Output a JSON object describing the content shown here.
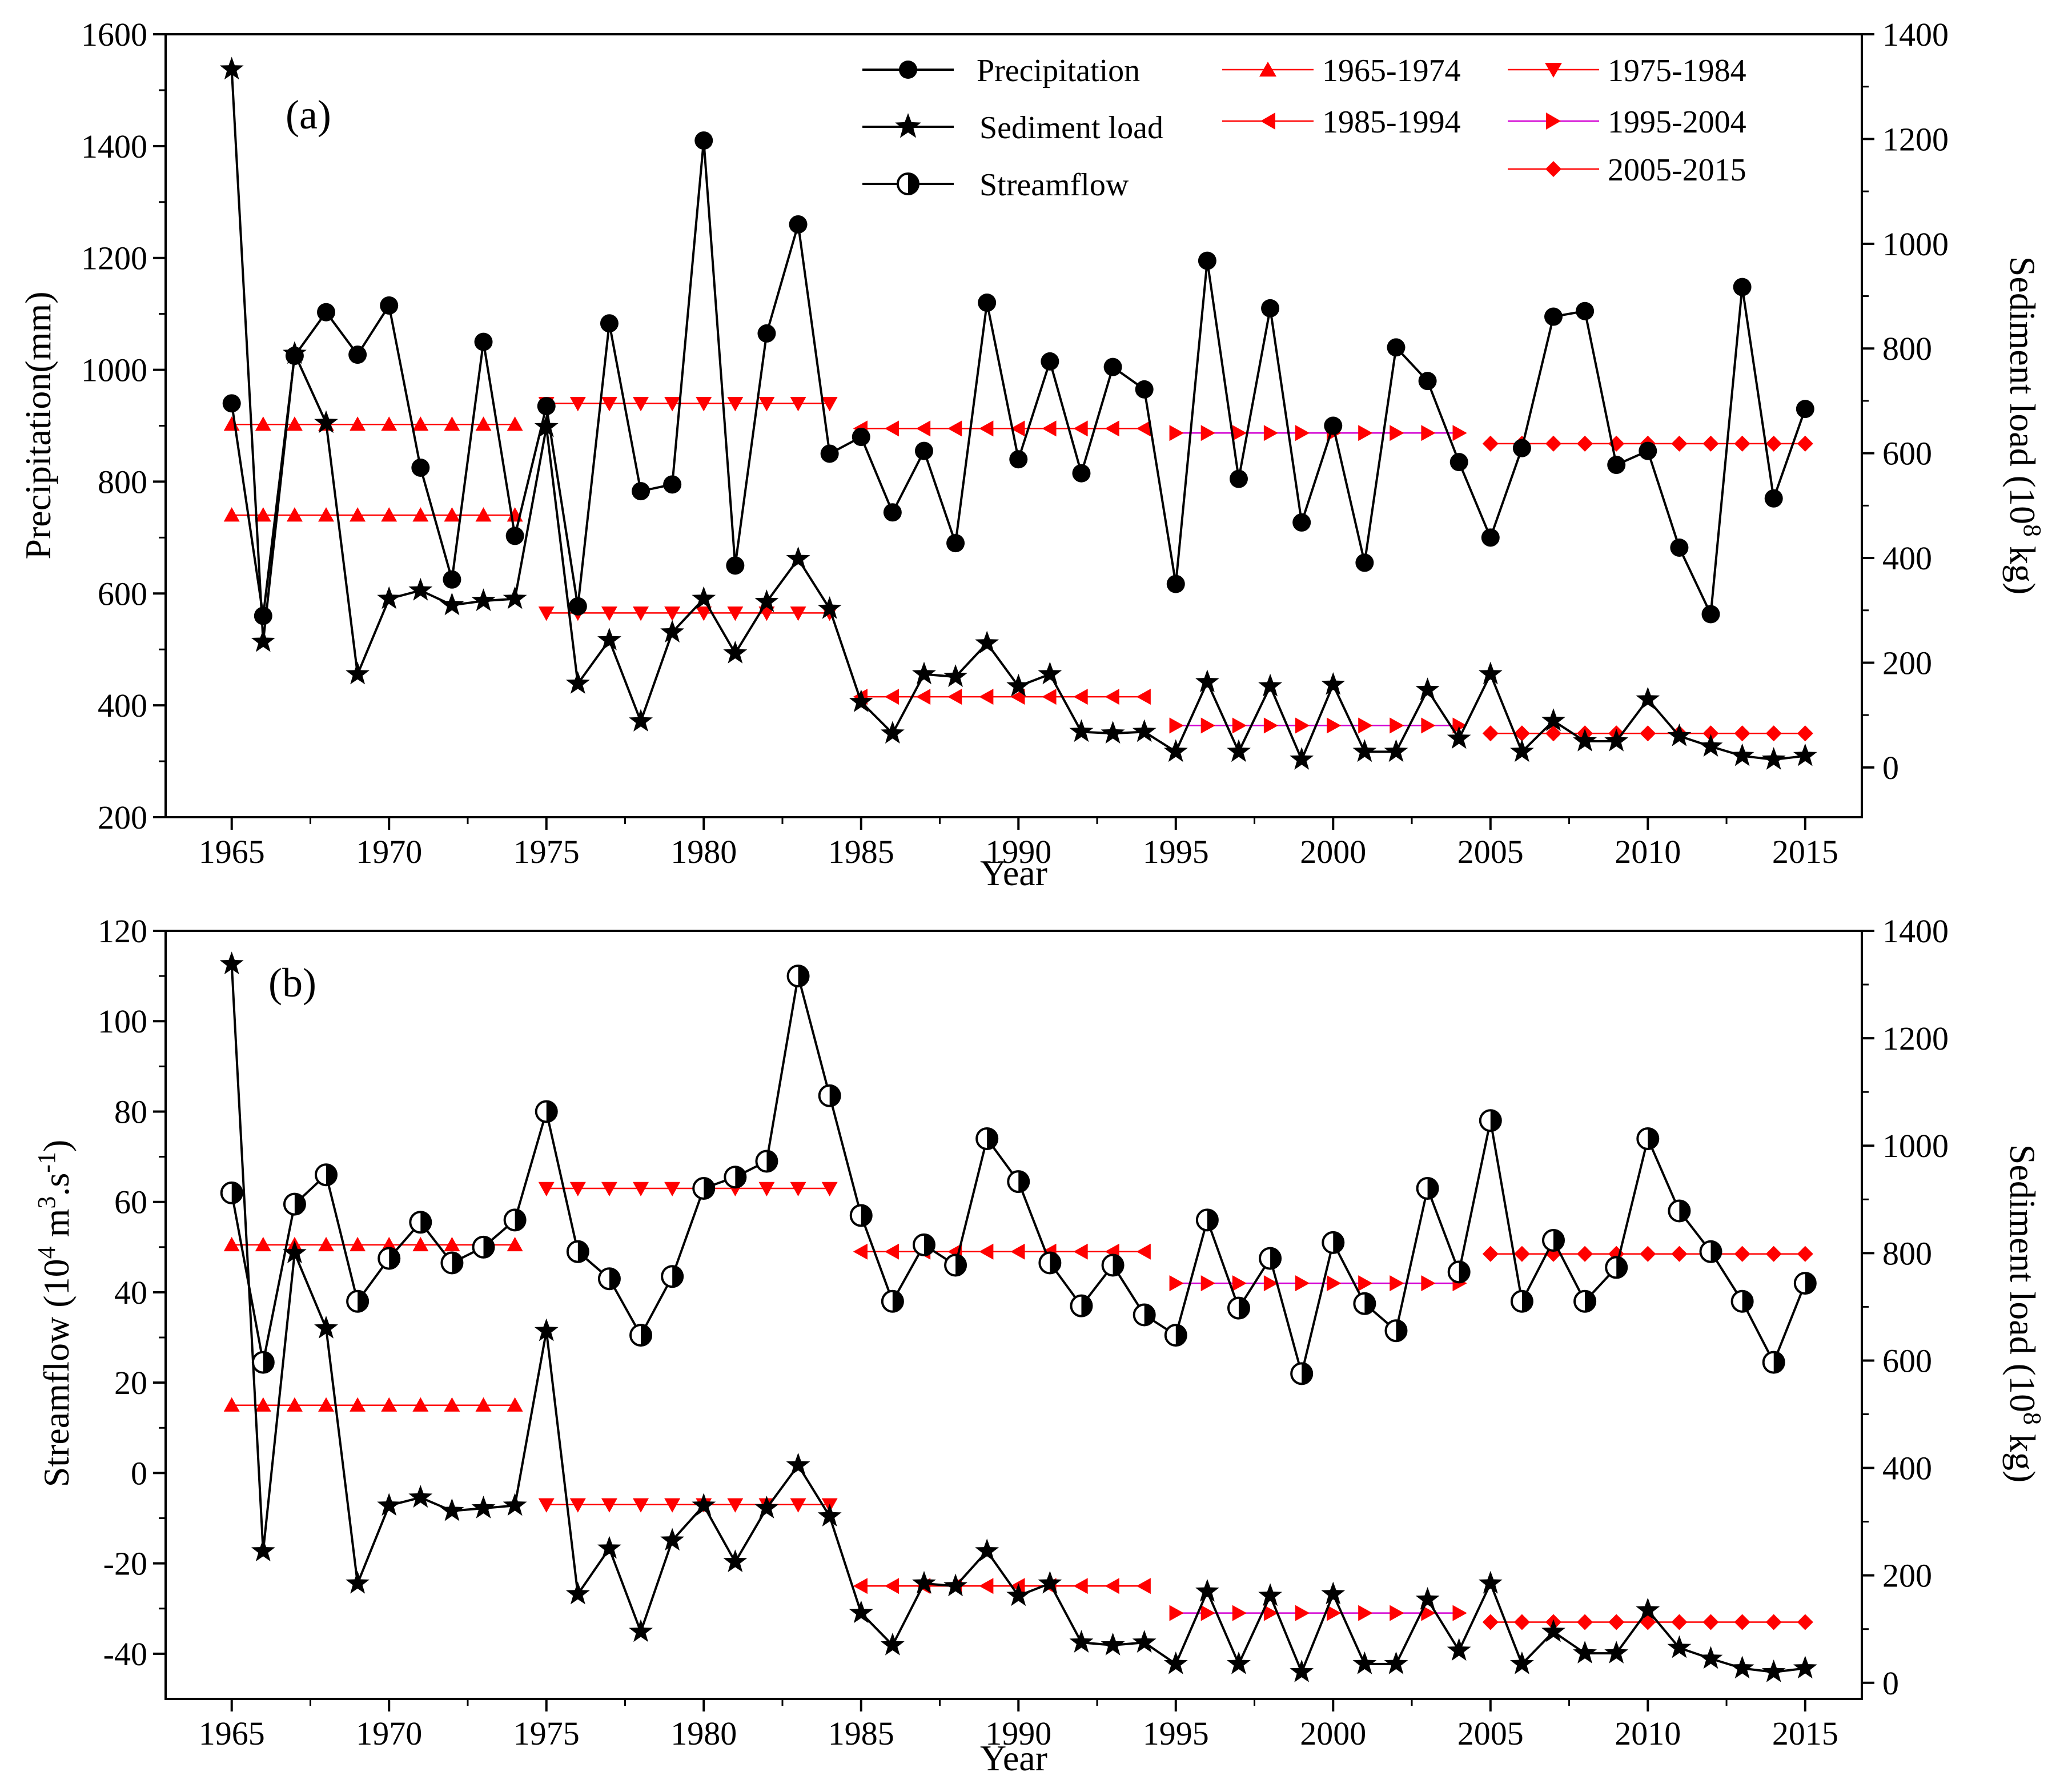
{
  "chart_data": [
    {
      "type": "line",
      "panel_label": "(a)",
      "xlabel": "Year",
      "ylabel_left": "Precipitation(mm)",
      "ylabel_right_main": "Sediment load (10",
      "ylabel_right_sup": "8",
      "ylabel_right_end": " kg)",
      "xlim": [
        1962.9,
        2016.8
      ],
      "x_ticks": [
        1965,
        1970,
        1975,
        1980,
        1985,
        1990,
        1995,
        2000,
        2005,
        2010,
        2015
      ],
      "x_tick_labels": [
        "1965",
        "1970",
        "1975",
        "1980",
        "1985",
        "1990",
        "1995",
        "2000",
        "2005",
        "2010",
        "2015"
      ],
      "ylim_left": [
        200,
        1600
      ],
      "y_ticks_left": [
        200,
        400,
        600,
        800,
        1000,
        1200,
        1400,
        1600
      ],
      "y_tick_labels_left": [
        "200",
        "400",
        "600",
        "800",
        "1000",
        "1200",
        "1400",
        "1600"
      ],
      "ylim_right": [
        -95,
        1400
      ],
      "y_ticks_right": [
        0,
        200,
        400,
        600,
        800,
        1000,
        1200,
        1400
      ],
      "y_tick_labels_right": [
        "0",
        "200",
        "400",
        "600",
        "800",
        "1000",
        "1200",
        "1400"
      ],
      "years": [
        1965,
        1966,
        1967,
        1968,
        1969,
        1970,
        1971,
        1972,
        1973,
        1974,
        1975,
        1976,
        1977,
        1978,
        1979,
        1980,
        1981,
        1982,
        1983,
        1984,
        1985,
        1986,
        1987,
        1988,
        1989,
        1990,
        1991,
        1992,
        1993,
        1994,
        1995,
        1996,
        1997,
        1998,
        1999,
        2000,
        2001,
        2002,
        2003,
        2004,
        2005,
        2006,
        2007,
        2008,
        2009,
        2010,
        2011,
        2012,
        2013,
        2014,
        2015
      ],
      "series": [
        {
          "name": "Precipitation",
          "axis": "left",
          "marker": "circle",
          "values": [
            940,
            560,
            1025,
            1103,
            1027,
            1115,
            825,
            625,
            1050,
            703,
            935,
            577,
            1083,
            783,
            795,
            1410,
            650,
            1065,
            1260,
            850,
            880,
            745,
            855,
            690,
            1120,
            840,
            1015,
            815,
            1005,
            965,
            617,
            1195,
            805,
            1110,
            727,
            900,
            655,
            1040,
            980,
            835,
            700,
            860,
            1095,
            1105,
            830,
            855,
            682,
            563,
            1148,
            770,
            930
          ]
        },
        {
          "name": "Sediment load",
          "axis": "right",
          "marker": "star",
          "values": [
            1333,
            240,
            790,
            658,
            178,
            322,
            338,
            310,
            318,
            322,
            650,
            160,
            243,
            88,
            258,
            322,
            218,
            316,
            398,
            303,
            125,
            65,
            178,
            173,
            237,
            155,
            178,
            68,
            65,
            68,
            30,
            163,
            30,
            155,
            15,
            158,
            30,
            30,
            148,
            55,
            178,
            30,
            89,
            50,
            50,
            130,
            60,
            40,
            22,
            15,
            22
          ]
        }
      ],
      "period_means": [
        {
          "name": "1965-1974",
          "marker": "triangle-up",
          "start": 1965,
          "end": 1974,
          "left": 740,
          "right": 655
        },
        {
          "name": "1975-1984",
          "marker": "triangle-down",
          "start": 1975,
          "end": 1984,
          "left": 940,
          "right": 295
        },
        {
          "name": "1985-1994",
          "marker": "triangle-left",
          "start": 1985,
          "end": 1994,
          "left": 895,
          "right": 135
        },
        {
          "name": "1995-2004",
          "marker": "triangle-right",
          "start": 1995,
          "end": 2004,
          "left": 887,
          "right": 80
        },
        {
          "name": "2005-2015",
          "marker": "diamond",
          "start": 2005,
          "end": 2015,
          "left": 868,
          "right": 65
        }
      ]
    },
    {
      "type": "line",
      "panel_label": "(b)",
      "xlabel": "Year",
      "ylabel_left_main": "Streamflow (10",
      "ylabel_left_sup1": "4",
      "ylabel_left_mid": " m",
      "ylabel_left_sup2": "3",
      "ylabel_left_mid2": ".s",
      "ylabel_left_sup3": "-1",
      "ylabel_left_end": ")",
      "ylabel_right_main": "Sediment load (10",
      "ylabel_right_sup": "8",
      "ylabel_right_end": " kg)",
      "xlim": [
        1962.9,
        2016.8
      ],
      "x_ticks": [
        1965,
        1970,
        1975,
        1980,
        1985,
        1990,
        1995,
        2000,
        2005,
        2010,
        2015
      ],
      "x_tick_labels": [
        "1965",
        "1970",
        "1975",
        "1980",
        "1985",
        "1990",
        "1995",
        "2000",
        "2005",
        "2010",
        "2015"
      ],
      "ylim_left": [
        -50,
        120
      ],
      "y_ticks_left": [
        -40,
        -20,
        0,
        20,
        40,
        60,
        80,
        100,
        120
      ],
      "y_tick_labels_left": [
        "-40",
        "-20",
        "0",
        "20",
        "40",
        "60",
        "80",
        "100",
        "120"
      ],
      "ylim_right": [
        -30,
        1400
      ],
      "y_ticks_right": [
        0,
        200,
        400,
        600,
        800,
        1000,
        1200,
        1400
      ],
      "y_tick_labels_right": [
        "0",
        "200",
        "400",
        "600",
        "800",
        "1000",
        "1200",
        "1400"
      ],
      "years": [
        1965,
        1966,
        1967,
        1968,
        1969,
        1970,
        1971,
        1972,
        1973,
        1974,
        1975,
        1976,
        1977,
        1978,
        1979,
        1980,
        1981,
        1982,
        1983,
        1984,
        1985,
        1986,
        1987,
        1988,
        1989,
        1990,
        1991,
        1992,
        1993,
        1994,
        1995,
        1996,
        1997,
        1998,
        1999,
        2000,
        2001,
        2002,
        2003,
        2004,
        2005,
        2006,
        2007,
        2008,
        2009,
        2010,
        2011,
        2012,
        2013,
        2014,
        2015
      ],
      "series": [
        {
          "name": "Streamflow",
          "axis": "left",
          "marker": "half-circle",
          "values": [
            62,
            24.5,
            59.5,
            66,
            38,
            47.5,
            55.5,
            46.5,
            50,
            56,
            80,
            49,
            43,
            30.5,
            43.5,
            63,
            65.5,
            69,
            110,
            83.5,
            57,
            38,
            50.5,
            46,
            74,
            64.5,
            46.5,
            37,
            46,
            35,
            30.5,
            56,
            36.5,
            47.5,
            22,
            51,
            37.5,
            31.5,
            63,
            44.5,
            78,
            38,
            51.5,
            38,
            45.5,
            74,
            58,
            49,
            38,
            24.5,
            42
          ]
        },
        {
          "name": "Sediment load",
          "axis": "right",
          "marker": "star",
          "values": [
            1338,
            245,
            800,
            660,
            185,
            330,
            345,
            320,
            325,
            330,
            655,
            165,
            250,
            95,
            265,
            330,
            225,
            325,
            405,
            310,
            130,
            70,
            185,
            180,
            245,
            162,
            185,
            75,
            70,
            75,
            35,
            170,
            35,
            162,
            20,
            165,
            35,
            35,
            155,
            60,
            185,
            35,
            95,
            55,
            55,
            135,
            65,
            45,
            27,
            20,
            27
          ]
        }
      ],
      "period_means": [
        {
          "name": "1965-1974",
          "marker": "triangle-up",
          "start": 1965,
          "end": 1974,
          "left": 50.5,
          "left2": 15
        },
        {
          "name": "1975-1984",
          "marker": "triangle-down",
          "start": 1975,
          "end": 1984,
          "left": 63,
          "left2": -7
        },
        {
          "name": "1985-1994",
          "marker": "triangle-left",
          "start": 1985,
          "end": 1994,
          "left": 49,
          "left2": -25
        },
        {
          "name": "1995-2004",
          "marker": "triangle-right",
          "start": 1995,
          "end": 2004,
          "left": 42,
          "left2": -31
        },
        {
          "name": "2005-2015",
          "marker": "diamond",
          "start": 2005,
          "end": 2015,
          "left": 48.5,
          "left2": -33
        }
      ]
    }
  ],
  "legend": {
    "line_series": [
      {
        "name": "Precipitation",
        "marker": "circle"
      },
      {
        "name": "Sediment load",
        "marker": "star"
      },
      {
        "name": "Streamflow",
        "marker": "half-circle"
      }
    ],
    "periods": [
      {
        "name": "1965-1974",
        "marker": "triangle-up",
        "line_color": "#ff0000"
      },
      {
        "name": "1975-1984",
        "marker": "triangle-down",
        "line_color": "#ff0000"
      },
      {
        "name": "1985-1994",
        "marker": "triangle-left",
        "line_color": "#ff0000"
      },
      {
        "name": "1995-2004",
        "marker": "triangle-right",
        "line_color": "#d200d2"
      },
      {
        "name": "2005-2015",
        "marker": "diamond",
        "line_color": "#ff0000"
      }
    ]
  },
  "colors": {
    "data_line": "#000000",
    "period_marker": "#ff0000",
    "period_line": "#ff0000",
    "period_line_1995": "#d200d2"
  }
}
